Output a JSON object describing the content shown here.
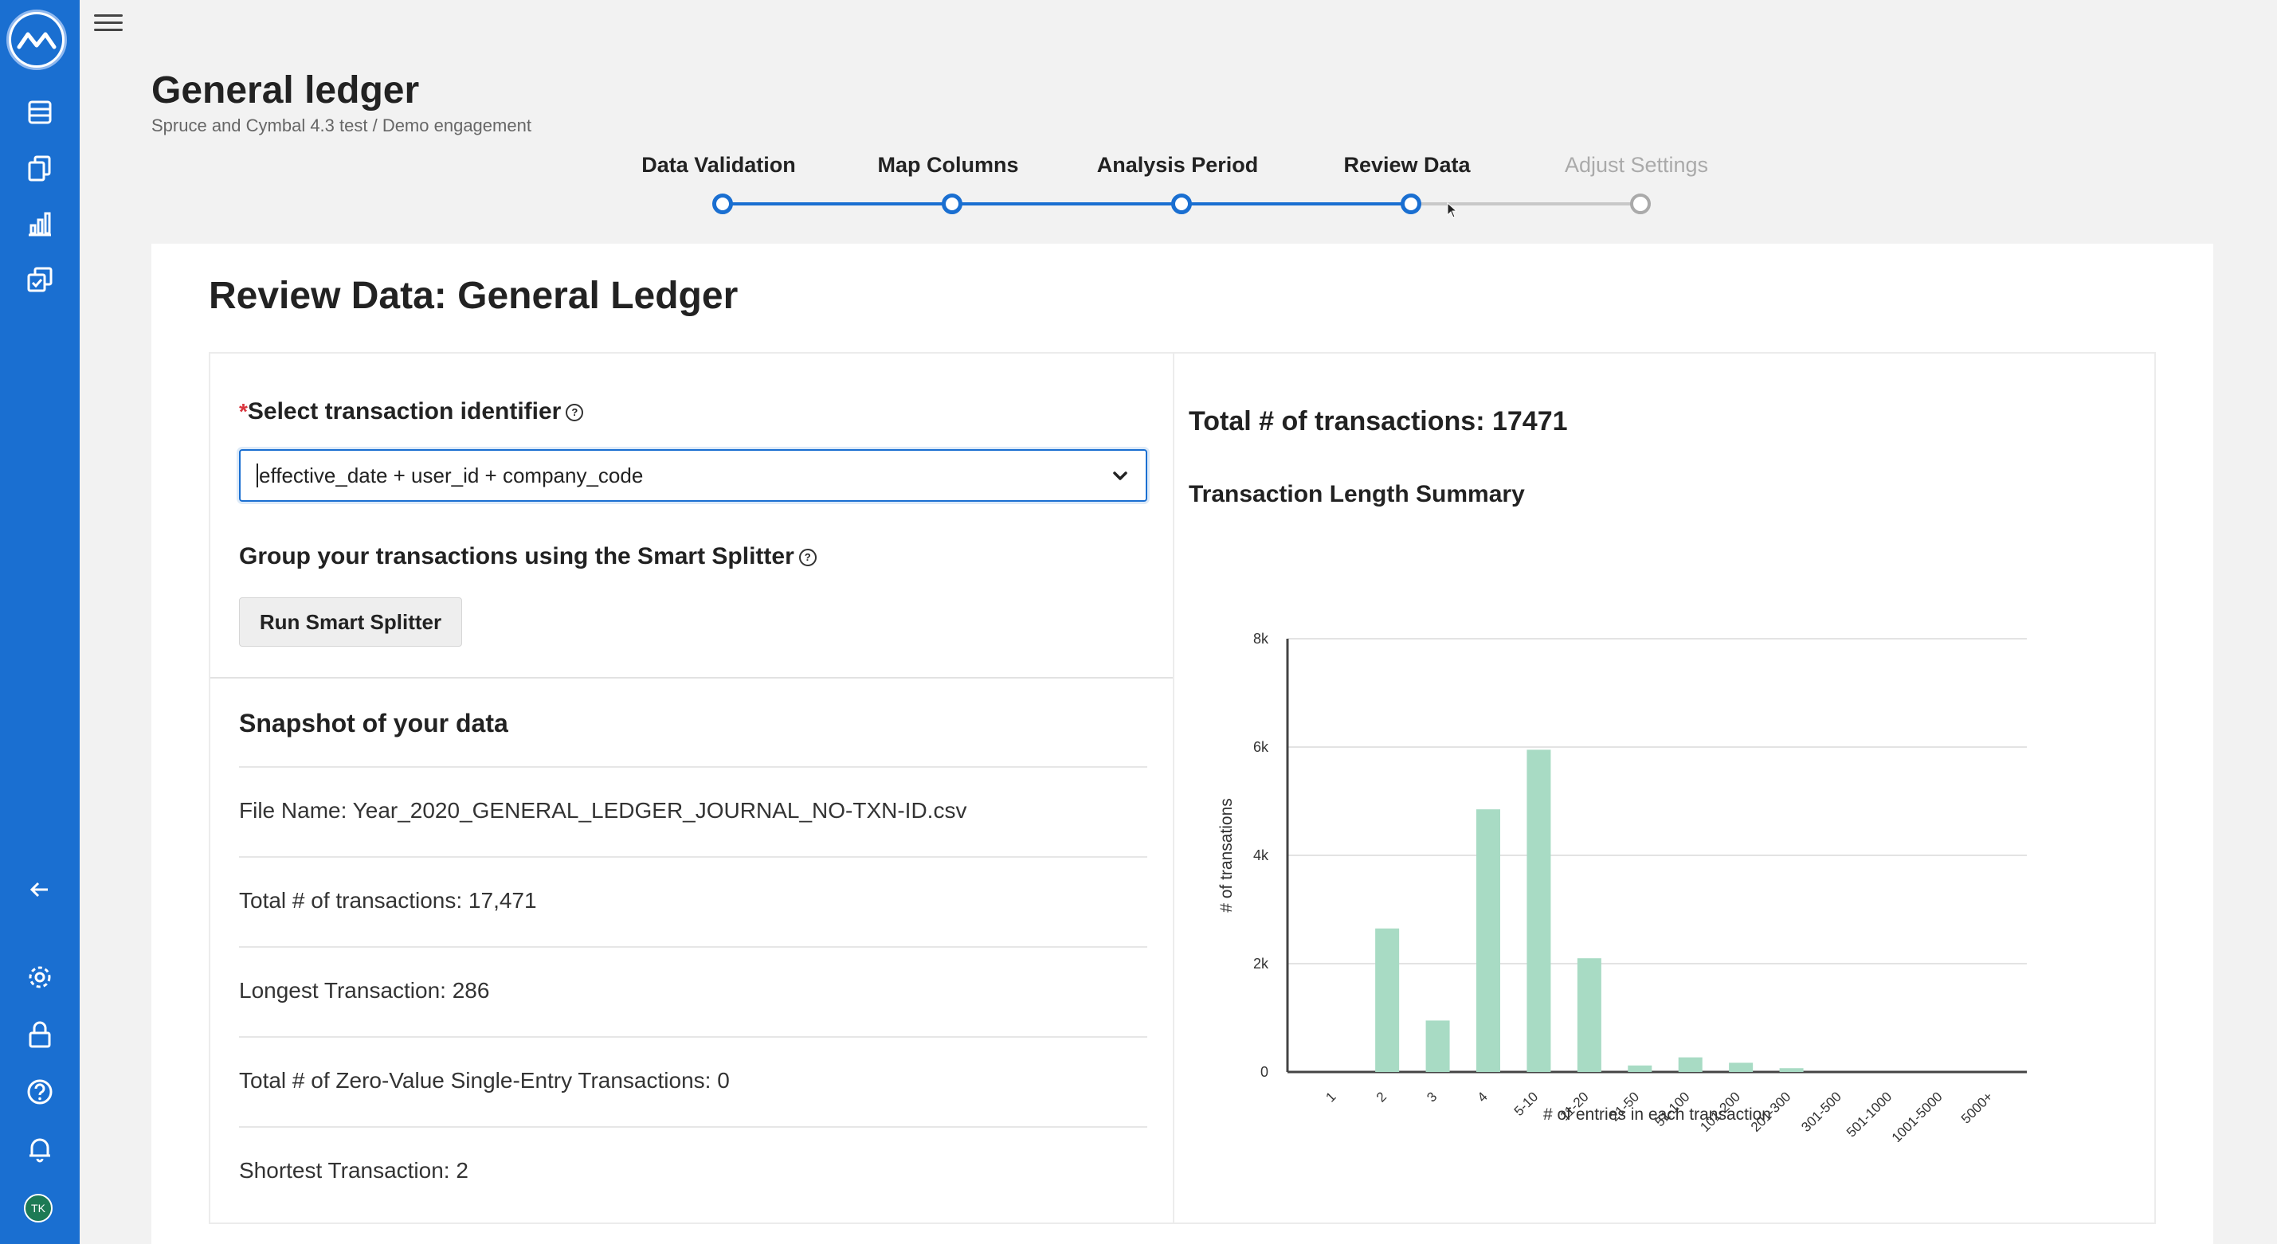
{
  "header": {
    "title": "General ledger",
    "subtitle": "Spruce and Cymbal 4.3 test / Demo engagement"
  },
  "avatar_initials": "TK",
  "stepper": {
    "steps": [
      {
        "label": "Data Validation",
        "state": "complete"
      },
      {
        "label": "Map Columns",
        "state": "complete"
      },
      {
        "label": "Analysis Period",
        "state": "complete"
      },
      {
        "label": "Review Data",
        "state": "current"
      },
      {
        "label": "Adjust Settings",
        "state": "upcoming"
      }
    ]
  },
  "review": {
    "title": "Review Data: General Ledger",
    "identifier_label": "Select transaction identifier",
    "identifier_required_mark": "*",
    "identifier_value": "effective_date + user_id + company_code",
    "group_label": "Group your transactions using the Smart Splitter",
    "run_button": "Run Smart Splitter",
    "help_glyph": "?"
  },
  "snapshot": {
    "title": "Snapshot of your data",
    "rows": [
      "File Name: Year_2020_GENERAL_LEDGER_JOURNAL_NO-TXN-ID.csv",
      "Total # of transactions: 17,471",
      "Longest Transaction: 286",
      "Total # of Zero-Value Single-Entry Transactions: 0",
      "Shortest Transaction: 2"
    ]
  },
  "summary": {
    "total_transactions": "Total # of transactions: 17471",
    "chart_heading": "Transaction Length Summary"
  },
  "colors": {
    "brand": "#1a6fd1",
    "bar": "#a8dbc4",
    "inactive": "#aaaaaa"
  },
  "chart_data": {
    "type": "bar",
    "title": "Transaction Length Summary",
    "xlabel": "# of entries in each transaction",
    "ylabel": "# of transations",
    "categories": [
      "1",
      "2",
      "3",
      "4",
      "5-10",
      "11-20",
      "21-50",
      "51-100",
      "101-200",
      "201-300",
      "301-500",
      "501-1000",
      "1001-5000",
      "5000+"
    ],
    "values": [
      0,
      2650,
      950,
      4850,
      5950,
      2100,
      120,
      270,
      170,
      70,
      0,
      0,
      0,
      0
    ],
    "ylim": [
      0,
      8000
    ],
    "yticks": [
      0,
      2000,
      4000,
      6000,
      8000
    ],
    "ytick_labels": [
      "0",
      "2k",
      "4k",
      "6k",
      "8k"
    ],
    "grid": true
  }
}
